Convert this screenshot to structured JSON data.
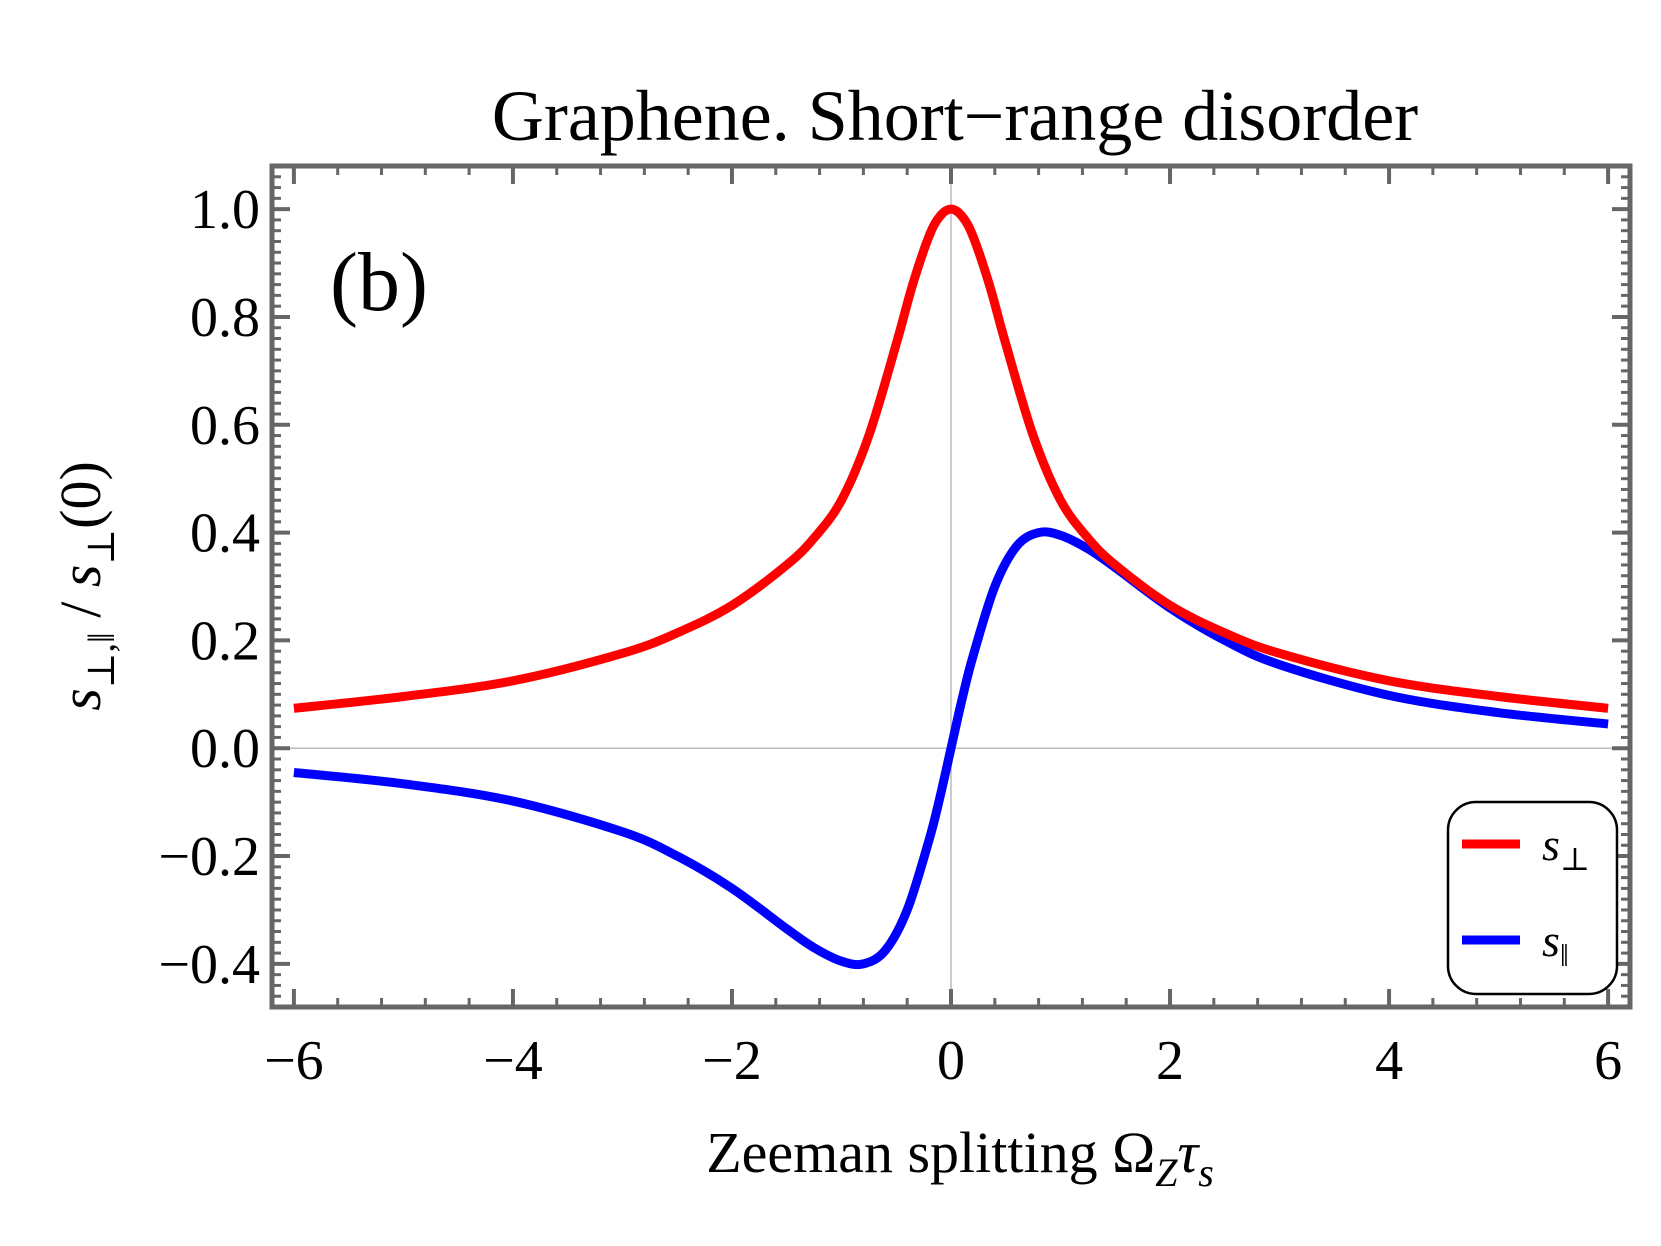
{
  "chart_data": {
    "type": "line",
    "title": "Graphene. Short−range disorder",
    "panel_label": "(b)",
    "xlabel": "Zeeman splitting Ω",
    "xlabel_sub1": "Z",
    "xlabel_tau": "τ",
    "xlabel_sub2": "s",
    "ylabel": {
      "s1": "s",
      "sub1": "⊥,‖",
      "slash": " / ",
      "s2": "s",
      "sub2": "⊥",
      "arg": "(0)"
    },
    "xlim": [
      -6.2,
      6.2
    ],
    "ylim": [
      -0.48,
      1.08
    ],
    "x_ticks": [
      -6,
      -4,
      -2,
      0,
      2,
      4,
      6
    ],
    "x_tick_labels": [
      "−6",
      "−4",
      "−2",
      "0",
      "2",
      "4",
      "6"
    ],
    "y_ticks": [
      -0.4,
      -0.2,
      0.0,
      0.2,
      0.4,
      0.6,
      0.8,
      1.0
    ],
    "y_tick_labels": [
      "−0.4",
      "−0.2",
      "0.0",
      "0.2",
      "0.4",
      "0.6",
      "0.8",
      "1.0"
    ],
    "series": [
      {
        "name": "s⊥",
        "legend_symbol": "s",
        "legend_sub": "⊥",
        "color": "#ff0000",
        "x": [
          -6,
          -5,
          -4,
          -3,
          -2.5,
          -2,
          -1.5,
          -1.25,
          -1,
          -0.75,
          -0.5,
          -0.35,
          -0.2,
          -0.1,
          0,
          0.1,
          0.2,
          0.35,
          0.5,
          0.75,
          1,
          1.25,
          1.5,
          2,
          2.5,
          3,
          4,
          5,
          6
        ],
        "y": [
          0.074,
          0.096,
          0.125,
          0.176,
          0.214,
          0.265,
          0.34,
          0.39,
          0.46,
          0.58,
          0.75,
          0.86,
          0.95,
          0.987,
          1.0,
          0.987,
          0.95,
          0.86,
          0.75,
          0.58,
          0.46,
          0.39,
          0.34,
          0.265,
          0.214,
          0.176,
          0.125,
          0.096,
          0.074
        ]
      },
      {
        "name": "s‖",
        "legend_symbol": "s",
        "legend_sub": "‖",
        "color": "#0000ff",
        "x": [
          -6,
          -5,
          -4,
          -3,
          -2.5,
          -2,
          -1.5,
          -1.25,
          -1,
          -0.8,
          -0.6,
          -0.4,
          -0.2,
          -0.1,
          0,
          0.1,
          0.2,
          0.4,
          0.6,
          0.8,
          1,
          1.25,
          1.5,
          2,
          2.5,
          3,
          4,
          5,
          6
        ],
        "y": [
          -0.045,
          -0.066,
          -0.098,
          -0.155,
          -0.2,
          -0.26,
          -0.335,
          -0.37,
          -0.395,
          -0.4,
          -0.375,
          -0.3,
          -0.17,
          -0.09,
          0.0,
          0.09,
          0.17,
          0.3,
          0.375,
          0.4,
          0.395,
          0.37,
          0.335,
          0.26,
          0.2,
          0.155,
          0.098,
          0.066,
          0.045
        ]
      }
    ],
    "legend_position": "bottom-right"
  }
}
